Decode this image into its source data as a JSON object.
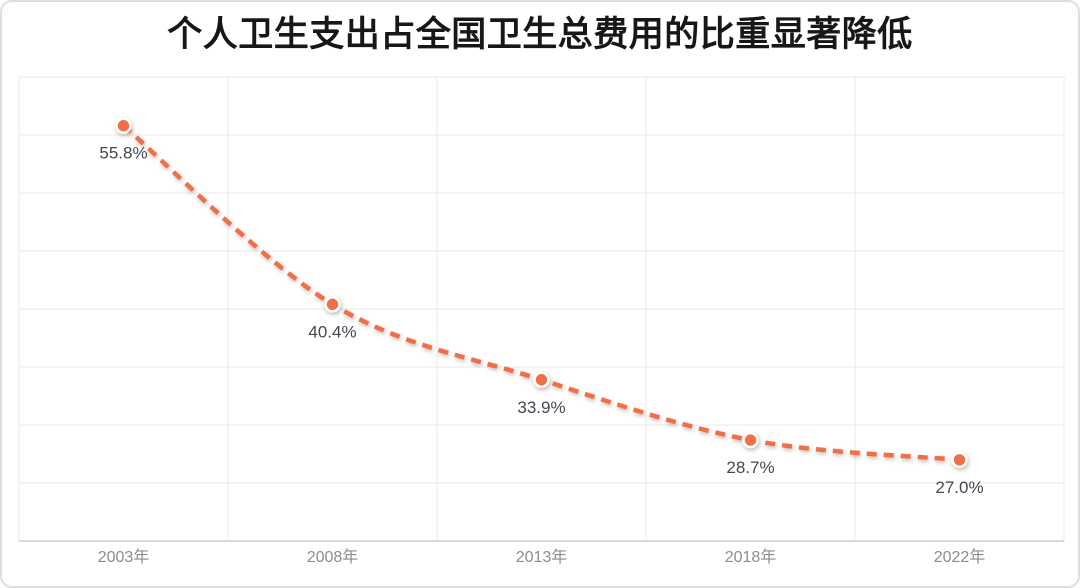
{
  "chart_data": {
    "type": "line",
    "title": "个人卫生支出占全国卫生总费用的比重显著降低",
    "categories": [
      "2003年",
      "2008年",
      "2013年",
      "2018年",
      "2022年"
    ],
    "values": [
      55.8,
      40.4,
      33.9,
      28.7,
      27.0
    ],
    "data_labels": [
      "55.8%",
      "40.4%",
      "33.9%",
      "28.7%",
      "27.0%"
    ],
    "xlabel": "",
    "ylabel": "",
    "ylim": [
      20,
      60
    ],
    "y_gridline_interval": 5,
    "grid": true,
    "legend_position": "none",
    "line_style": "dashed-smooth",
    "colors": {
      "line": "#ef7048",
      "marker_fill": "#ef7048",
      "marker_ring": "#ffffff",
      "data_label": "#424750",
      "tick_label": "#8c8c8c",
      "gridline": "#e9e9e9",
      "axis_line": "#cccccc",
      "title": "#171717",
      "card_border": "#dedede",
      "background": "#ffffff"
    }
  }
}
